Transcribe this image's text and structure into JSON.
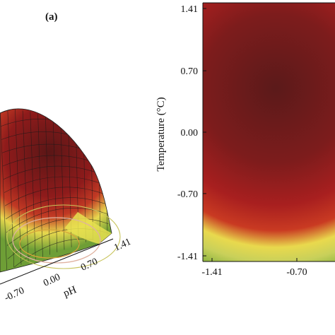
{
  "chart_data": [
    {
      "panel": "(a)",
      "type": "surface",
      "xlabel": "pH",
      "x_ticks": [
        "-0.70",
        "0.00",
        "0.70",
        "1.41"
      ],
      "xlim": [
        -1.41,
        1.41
      ],
      "ylim": [
        -1.41,
        1.41
      ],
      "optimum": {
        "x": 0.3,
        "y": 0.5
      },
      "colors": [
        "#5b1a1a",
        "#8e1c1c",
        "#c0392b",
        "#e9e25a",
        "#7fae3a"
      ]
    },
    {
      "type": "heatmap",
      "ylabel": "Temperature (°C)",
      "y_ticks": [
        "1.41",
        "0.70",
        "0.00",
        "-0.70",
        "-1.41"
      ],
      "x_ticks": [
        "-1.41",
        "-0.70"
      ],
      "xlim": [
        -1.41,
        1.41
      ],
      "ylim": [
        -1.41,
        1.41
      ],
      "optimum": {
        "x": 0.3,
        "y": 0.5
      },
      "colors": [
        "#5b1a1a",
        "#8e1c1c",
        "#b8251f",
        "#e9e25a",
        "#4f9a35"
      ]
    }
  ]
}
